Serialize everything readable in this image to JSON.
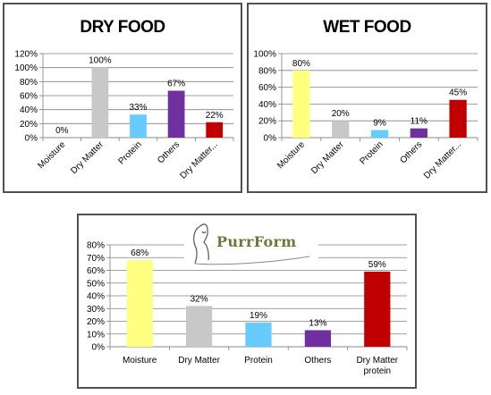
{
  "logo": {
    "text": "PurrForm"
  },
  "chart_data": [
    {
      "type": "bar",
      "title": "DRY FOOD",
      "categories": [
        "Moisture",
        "Dry Matter",
        "Protein",
        "Others",
        "Dry Matter..."
      ],
      "values": [
        0,
        100,
        33,
        67,
        22
      ],
      "data_labels": [
        "0%",
        "100%",
        "33%",
        "67%",
        "22%"
      ],
      "bar_colors": [
        "#ffff80",
        "#c8c8c8",
        "#66ccff",
        "#7030a0",
        "#c00000"
      ],
      "ylim": [
        0,
        120
      ],
      "yticks": [
        0,
        20,
        40,
        60,
        80,
        100,
        120
      ],
      "ytick_labels": [
        "0%",
        "20%",
        "40%",
        "60%",
        "80%",
        "100%",
        "120%"
      ],
      "xlabel": "",
      "ylabel": "",
      "grid": true,
      "legend": "none"
    },
    {
      "type": "bar",
      "title": "WET FOOD",
      "categories": [
        "Moisture",
        "Dry Matter",
        "Protein",
        "Others",
        "Dry Matter..."
      ],
      "values": [
        80,
        20,
        9,
        11,
        45
      ],
      "data_labels": [
        "80%",
        "20%",
        "9%",
        "11%",
        "45%"
      ],
      "bar_colors": [
        "#ffff80",
        "#c8c8c8",
        "#66ccff",
        "#7030a0",
        "#c00000"
      ],
      "ylim": [
        0,
        100
      ],
      "yticks": [
        0,
        20,
        40,
        60,
        80,
        100
      ],
      "ytick_labels": [
        "0%",
        "20%",
        "40%",
        "60%",
        "80%",
        "100%"
      ],
      "xlabel": "",
      "ylabel": "",
      "grid": true,
      "legend": "none"
    },
    {
      "type": "bar",
      "title": "",
      "categories": [
        "Moisture",
        "Dry Matter",
        "Protein",
        "Others",
        "Dry Matter protein"
      ],
      "values": [
        68,
        32,
        19,
        13,
        59
      ],
      "data_labels": [
        "68%",
        "32%",
        "19%",
        "13%",
        "59%"
      ],
      "bar_colors": [
        "#ffff80",
        "#c8c8c8",
        "#66ccff",
        "#7030a0",
        "#c00000"
      ],
      "ylim": [
        0,
        80
      ],
      "yticks": [
        0,
        10,
        20,
        30,
        40,
        50,
        60,
        70,
        80
      ],
      "ytick_labels": [
        "0%",
        "10%",
        "20%",
        "30%",
        "40%",
        "50%",
        "60%",
        "70%",
        "80%"
      ],
      "xlabel": "",
      "ylabel": "",
      "grid": true,
      "legend": "none"
    }
  ]
}
